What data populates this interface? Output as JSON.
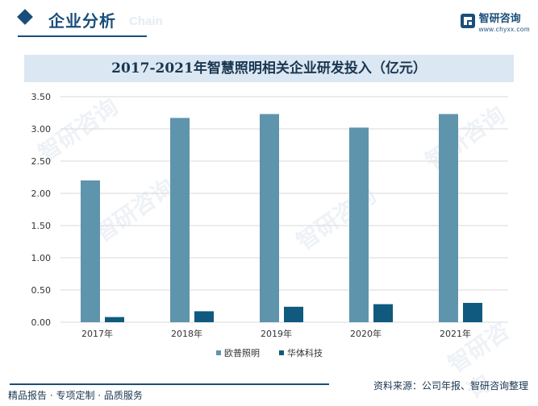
{
  "header": {
    "section_title": "企业分析",
    "section_ghost": "Chain",
    "logo_name": "智研咨询",
    "logo_url": "www.chyxx.com"
  },
  "footer": {
    "left_text": "精品报告 · 专项定制 · 品质服务",
    "source": "资料来源：公司年报、智研咨询整理"
  },
  "watermark": "智研咨询",
  "colors": {
    "brand": "#1a4e7a",
    "series1": "#5f94ad",
    "series2": "#0f5a7e"
  },
  "chart_data": {
    "type": "bar",
    "title": "2017-2021年智慧照明相关企业研发投入（亿元）",
    "categories": [
      "2017年",
      "2018年",
      "2019年",
      "2020年",
      "2021年"
    ],
    "series": [
      {
        "name": "欧普照明",
        "values": [
          2.2,
          3.17,
          3.23,
          3.02,
          3.23
        ]
      },
      {
        "name": "华体科技",
        "values": [
          0.08,
          0.17,
          0.24,
          0.28,
          0.3
        ]
      }
    ],
    "ylim": [
      0,
      3.5
    ],
    "yticks": [
      "0.00",
      "0.50",
      "1.00",
      "1.50",
      "2.00",
      "2.50",
      "3.00",
      "3.50"
    ],
    "xlabel": "",
    "ylabel": "",
    "grid": true,
    "legend": "bottom-center"
  }
}
